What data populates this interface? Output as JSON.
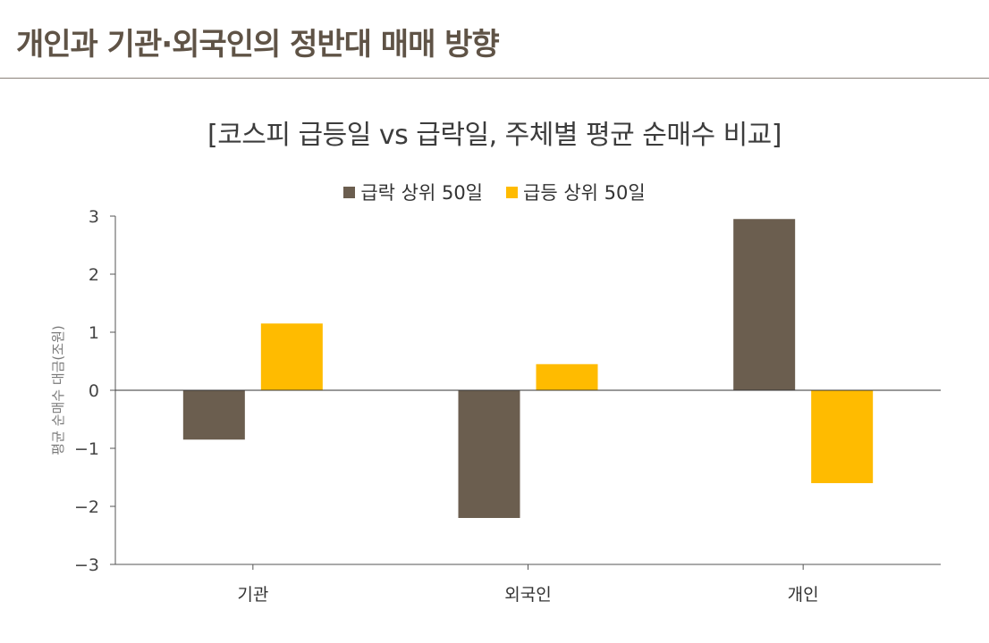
{
  "header": {
    "title": "개인과 기관·외국인의 정반대 매매 방향"
  },
  "chart_data": {
    "type": "bar",
    "title": "[코스피 급등일 vs 급락일, 주체별 평균 순매수 비교]",
    "categories": [
      "기관",
      "외국인",
      "개인"
    ],
    "series": [
      {
        "name": "급락 상위 50일",
        "color": "#6b5e4f",
        "values": [
          -0.85,
          -2.2,
          2.95
        ]
      },
      {
        "name": "급등 상위 50일",
        "color": "#ffbb00",
        "values": [
          1.15,
          0.45,
          -1.6
        ]
      }
    ],
    "xlabel": "",
    "ylabel": "평균 순매수 대금(조원)",
    "ylim": [
      -3,
      3
    ],
    "yticks": [
      {
        "value": 3,
        "label": "3"
      },
      {
        "value": 2,
        "label": "2"
      },
      {
        "value": 1,
        "label": "1"
      },
      {
        "value": 0,
        "label": "0"
      },
      {
        "value": -1,
        "label": "−1"
      },
      {
        "value": -2,
        "label": "−2"
      },
      {
        "value": -3,
        "label": "−3"
      }
    ],
    "legend_position": "top-center",
    "grid": false
  }
}
